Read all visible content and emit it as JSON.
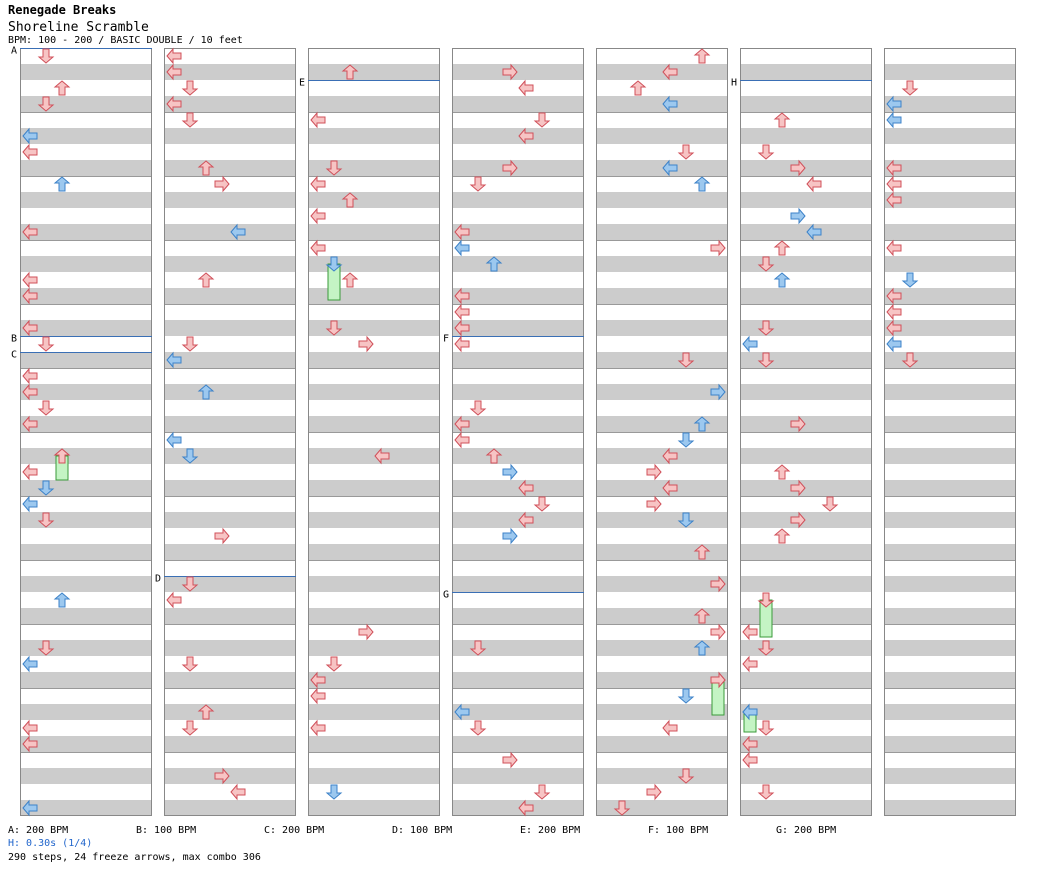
{
  "header": {
    "title": "Renegade Breaks",
    "subtitle": "Shoreline Scramble",
    "info": "BPM: 100 - 200 / BASIC DOUBLE / 10 feet"
  },
  "colors": {
    "stripe": "#cccccc",
    "column_border": "#888888",
    "bpm_line": "#3a6fb5",
    "arrow_red_fill": "#f7c4c4",
    "arrow_red_stroke": "#d0505a",
    "arrow_blue_fill": "#9cc8ef",
    "arrow_blue_stroke": "#3d82c8",
    "freeze_fill": "#c4f4c4",
    "freeze_stroke": "#3a9a3a"
  },
  "bpm_markers": [
    {
      "label": "A",
      "column": 0,
      "row": 0
    },
    {
      "label": "B",
      "column": 0,
      "row": 36
    },
    {
      "label": "C",
      "column": 0,
      "row": 38
    },
    {
      "label": "D",
      "column": 1,
      "row": 66
    },
    {
      "label": "E",
      "column": 2,
      "row": 4
    },
    {
      "label": "F",
      "column": 3,
      "row": 36
    },
    {
      "label": "G",
      "column": 3,
      "row": 68
    },
    {
      "label": "H",
      "column": 5,
      "row": 4
    }
  ],
  "bpm_legend": [
    "A: 200 BPM",
    "B: 100 BPM",
    "C: 200 BPM",
    "D: 100 BPM",
    "E: 200 BPM",
    "F: 100 BPM",
    "G: 200 BPM"
  ],
  "freeze_note": "H: 0.30s (1/4)",
  "stats": "290 steps, 24 freeze arrows, max combo 306"
}
